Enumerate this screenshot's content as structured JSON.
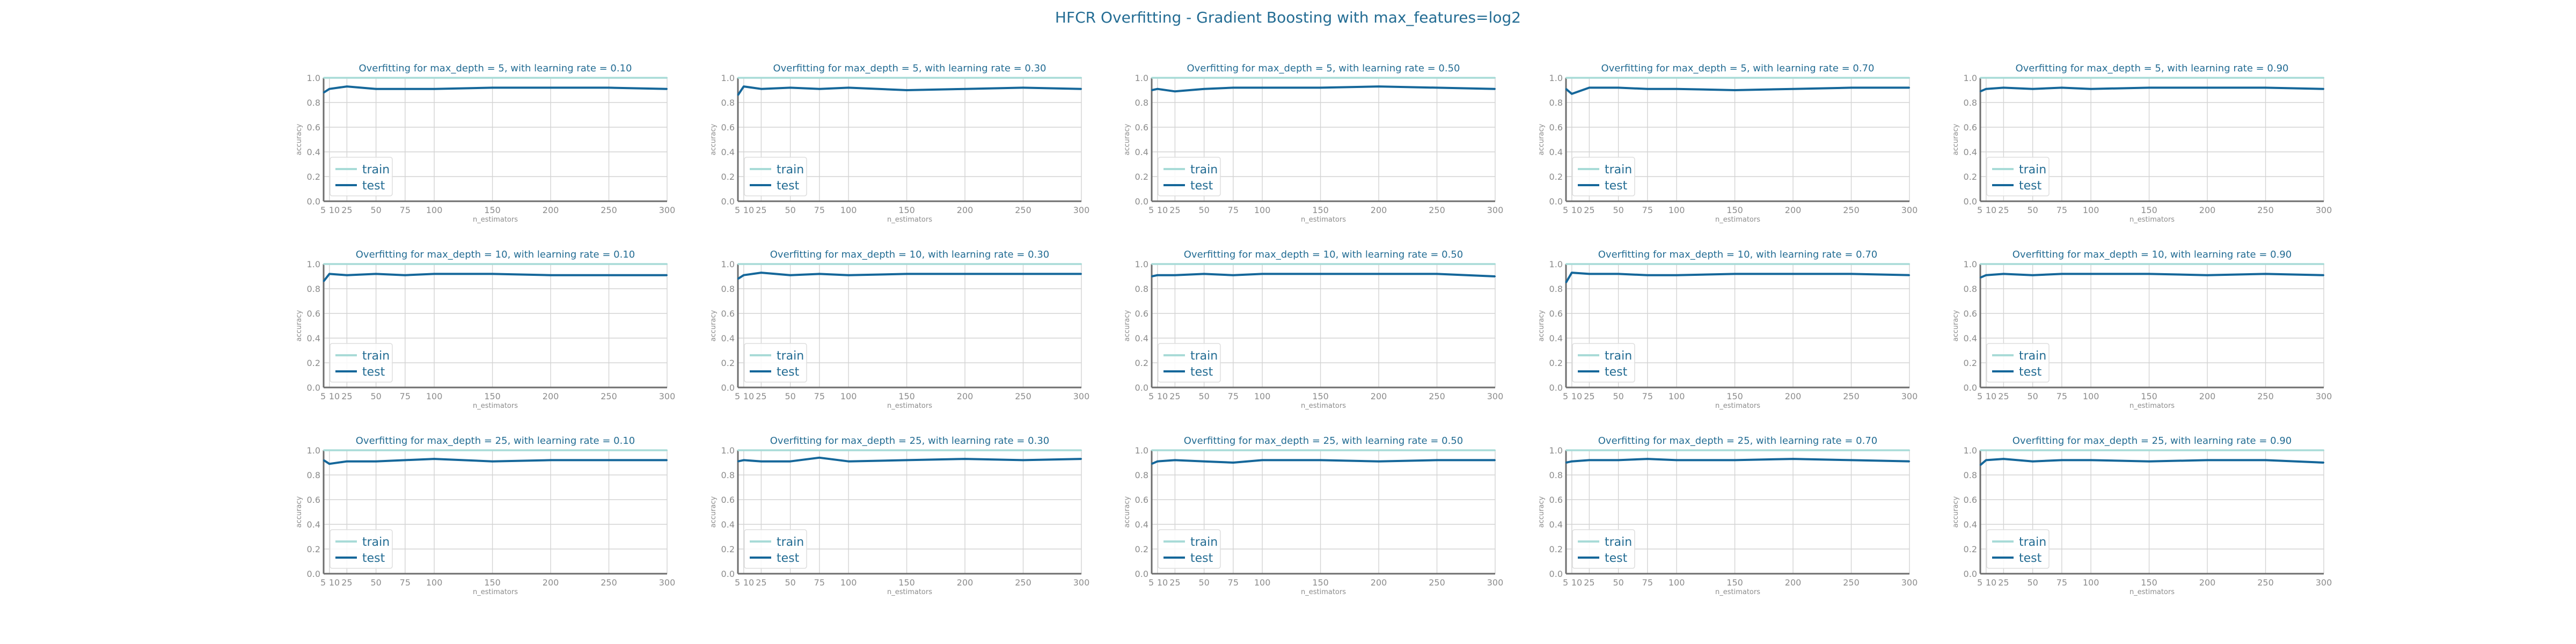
{
  "figure": {
    "title": "HFCR Overfitting - Gradient Boosting with max_features=log2"
  },
  "colors": {
    "train": "#a8dbd7",
    "test": "#15679a",
    "title": "#236c93",
    "grid": "#d3d3d3",
    "tick": "#8c8c8c"
  },
  "chart_data": [
    {
      "type": "line",
      "title": "Overfitting for max_depth = 5, with learning rate = 0.10",
      "xlabel": "n_estimators",
      "ylabel": "accuracy",
      "xlim": [
        5,
        300
      ],
      "ylim": [
        0,
        1
      ],
      "xticks": [
        5,
        10,
        25,
        50,
        75,
        100,
        150,
        200,
        250,
        300
      ],
      "yticks": [
        0.0,
        0.2,
        0.4,
        0.6,
        0.8,
        1.0
      ],
      "legend": "lower-left",
      "grid": true,
      "x": [
        5,
        10,
        25,
        50,
        75,
        100,
        150,
        200,
        250,
        300
      ],
      "series": [
        {
          "name": "train",
          "values": [
            1,
            1,
            1,
            1,
            1,
            1,
            1,
            1,
            1,
            1
          ]
        },
        {
          "name": "test",
          "values": [
            0.88,
            0.91,
            0.93,
            0.91,
            0.91,
            0.91,
            0.92,
            0.92,
            0.92,
            0.91
          ]
        }
      ]
    },
    {
      "type": "line",
      "title": "Overfitting for max_depth = 5, with learning rate = 0.30",
      "xlabel": "n_estimators",
      "ylabel": "accuracy",
      "xlim": [
        5,
        300
      ],
      "ylim": [
        0,
        1
      ],
      "xticks": [
        5,
        10,
        25,
        50,
        75,
        100,
        150,
        200,
        250,
        300
      ],
      "yticks": [
        0.0,
        0.2,
        0.4,
        0.6,
        0.8,
        1.0
      ],
      "legend": "lower-left",
      "grid": true,
      "x": [
        5,
        10,
        25,
        50,
        75,
        100,
        150,
        200,
        250,
        300
      ],
      "series": [
        {
          "name": "train",
          "values": [
            1,
            1,
            1,
            1,
            1,
            1,
            1,
            1,
            1,
            1
          ]
        },
        {
          "name": "test",
          "values": [
            0.86,
            0.93,
            0.91,
            0.92,
            0.91,
            0.92,
            0.9,
            0.91,
            0.92,
            0.91
          ]
        }
      ]
    },
    {
      "type": "line",
      "title": "Overfitting for max_depth = 5, with learning rate = 0.50",
      "xlabel": "n_estimators",
      "ylabel": "accuracy",
      "xlim": [
        5,
        300
      ],
      "ylim": [
        0,
        1
      ],
      "xticks": [
        5,
        10,
        25,
        50,
        75,
        100,
        150,
        200,
        250,
        300
      ],
      "yticks": [
        0.0,
        0.2,
        0.4,
        0.6,
        0.8,
        1.0
      ],
      "legend": "lower-left",
      "grid": true,
      "x": [
        5,
        10,
        25,
        50,
        75,
        100,
        150,
        200,
        250,
        300
      ],
      "series": [
        {
          "name": "train",
          "values": [
            1,
            1,
            1,
            1,
            1,
            1,
            1,
            1,
            1,
            1
          ]
        },
        {
          "name": "test",
          "values": [
            0.9,
            0.91,
            0.89,
            0.91,
            0.92,
            0.92,
            0.92,
            0.93,
            0.92,
            0.91
          ]
        }
      ]
    },
    {
      "type": "line",
      "title": "Overfitting for max_depth = 5, with learning rate = 0.70",
      "xlabel": "n_estimators",
      "ylabel": "accuracy",
      "xlim": [
        5,
        300
      ],
      "ylim": [
        0,
        1
      ],
      "xticks": [
        5,
        10,
        25,
        50,
        75,
        100,
        150,
        200,
        250,
        300
      ],
      "yticks": [
        0.0,
        0.2,
        0.4,
        0.6,
        0.8,
        1.0
      ],
      "legend": "lower-left",
      "grid": true,
      "x": [
        5,
        10,
        25,
        50,
        75,
        100,
        150,
        200,
        250,
        300
      ],
      "series": [
        {
          "name": "train",
          "values": [
            1,
            1,
            1,
            1,
            1,
            1,
            1,
            1,
            1,
            1
          ]
        },
        {
          "name": "test",
          "values": [
            0.91,
            0.87,
            0.92,
            0.92,
            0.91,
            0.91,
            0.9,
            0.91,
            0.92,
            0.92
          ]
        }
      ]
    },
    {
      "type": "line",
      "title": "Overfitting for max_depth = 5, with learning rate = 0.90",
      "xlabel": "n_estimators",
      "ylabel": "accuracy",
      "xlim": [
        5,
        300
      ],
      "ylim": [
        0,
        1
      ],
      "xticks": [
        5,
        10,
        25,
        50,
        75,
        100,
        150,
        200,
        250,
        300
      ],
      "yticks": [
        0.0,
        0.2,
        0.4,
        0.6,
        0.8,
        1.0
      ],
      "legend": "lower-left",
      "grid": true,
      "x": [
        5,
        10,
        25,
        50,
        75,
        100,
        150,
        200,
        250,
        300
      ],
      "series": [
        {
          "name": "train",
          "values": [
            1,
            1,
            1,
            1,
            1,
            1,
            1,
            1,
            1,
            1
          ]
        },
        {
          "name": "test",
          "values": [
            0.89,
            0.91,
            0.92,
            0.91,
            0.92,
            0.91,
            0.92,
            0.92,
            0.92,
            0.91
          ]
        }
      ]
    },
    {
      "type": "line",
      "title": "Overfitting for max_depth = 10, with learning rate = 0.10",
      "xlabel": "n_estimators",
      "ylabel": "accuracy",
      "xlim": [
        5,
        300
      ],
      "ylim": [
        0,
        1
      ],
      "xticks": [
        5,
        10,
        25,
        50,
        75,
        100,
        150,
        200,
        250,
        300
      ],
      "yticks": [
        0.0,
        0.2,
        0.4,
        0.6,
        0.8,
        1.0
      ],
      "legend": "lower-left",
      "grid": true,
      "x": [
        5,
        10,
        25,
        50,
        75,
        100,
        150,
        200,
        250,
        300
      ],
      "series": [
        {
          "name": "train",
          "values": [
            1,
            1,
            1,
            1,
            1,
            1,
            1,
            1,
            1,
            1
          ]
        },
        {
          "name": "test",
          "values": [
            0.86,
            0.92,
            0.91,
            0.92,
            0.91,
            0.92,
            0.92,
            0.91,
            0.91,
            0.91
          ]
        }
      ]
    },
    {
      "type": "line",
      "title": "Overfitting for max_depth = 10, with learning rate = 0.30",
      "xlabel": "n_estimators",
      "ylabel": "accuracy",
      "xlim": [
        5,
        300
      ],
      "ylim": [
        0,
        1
      ],
      "xticks": [
        5,
        10,
        25,
        50,
        75,
        100,
        150,
        200,
        250,
        300
      ],
      "yticks": [
        0.0,
        0.2,
        0.4,
        0.6,
        0.8,
        1.0
      ],
      "legend": "lower-left",
      "grid": true,
      "x": [
        5,
        10,
        25,
        50,
        75,
        100,
        150,
        200,
        250,
        300
      ],
      "series": [
        {
          "name": "train",
          "values": [
            1,
            1,
            1,
            1,
            1,
            1,
            1,
            1,
            1,
            1
          ]
        },
        {
          "name": "test",
          "values": [
            0.88,
            0.91,
            0.93,
            0.91,
            0.92,
            0.91,
            0.92,
            0.92,
            0.92,
            0.92
          ]
        }
      ]
    },
    {
      "type": "line",
      "title": "Overfitting for max_depth = 10, with learning rate = 0.50",
      "xlabel": "n_estimators",
      "ylabel": "accuracy",
      "xlim": [
        5,
        300
      ],
      "ylim": [
        0,
        1
      ],
      "xticks": [
        5,
        10,
        25,
        50,
        75,
        100,
        150,
        200,
        250,
        300
      ],
      "yticks": [
        0.0,
        0.2,
        0.4,
        0.6,
        0.8,
        1.0
      ],
      "legend": "lower-left",
      "grid": true,
      "x": [
        5,
        10,
        25,
        50,
        75,
        100,
        150,
        200,
        250,
        300
      ],
      "series": [
        {
          "name": "train",
          "values": [
            1,
            1,
            1,
            1,
            1,
            1,
            1,
            1,
            1,
            1
          ]
        },
        {
          "name": "test",
          "values": [
            0.9,
            0.91,
            0.91,
            0.92,
            0.91,
            0.92,
            0.92,
            0.92,
            0.92,
            0.9
          ]
        }
      ]
    },
    {
      "type": "line",
      "title": "Overfitting for max_depth = 10, with learning rate = 0.70",
      "xlabel": "n_estimators",
      "ylabel": "accuracy",
      "xlim": [
        5,
        300
      ],
      "ylim": [
        0,
        1
      ],
      "xticks": [
        5,
        10,
        25,
        50,
        75,
        100,
        150,
        200,
        250,
        300
      ],
      "yticks": [
        0.0,
        0.2,
        0.4,
        0.6,
        0.8,
        1.0
      ],
      "legend": "lower-left",
      "grid": true,
      "x": [
        5,
        10,
        25,
        50,
        75,
        100,
        150,
        200,
        250,
        300
      ],
      "series": [
        {
          "name": "train",
          "values": [
            1,
            1,
            1,
            1,
            1,
            1,
            1,
            1,
            1,
            1
          ]
        },
        {
          "name": "test",
          "values": [
            0.85,
            0.93,
            0.92,
            0.92,
            0.91,
            0.91,
            0.92,
            0.92,
            0.92,
            0.91
          ]
        }
      ]
    },
    {
      "type": "line",
      "title": "Overfitting for max_depth = 10, with learning rate = 0.90",
      "xlabel": "n_estimators",
      "ylabel": "accuracy",
      "xlim": [
        5,
        300
      ],
      "ylim": [
        0,
        1
      ],
      "xticks": [
        5,
        10,
        25,
        50,
        75,
        100,
        150,
        200,
        250,
        300
      ],
      "yticks": [
        0.0,
        0.2,
        0.4,
        0.6,
        0.8,
        1.0
      ],
      "legend": "lower-left",
      "grid": true,
      "x": [
        5,
        10,
        25,
        50,
        75,
        100,
        150,
        200,
        250,
        300
      ],
      "series": [
        {
          "name": "train",
          "values": [
            1,
            1,
            1,
            1,
            1,
            1,
            1,
            1,
            1,
            1
          ]
        },
        {
          "name": "test",
          "values": [
            0.89,
            0.91,
            0.92,
            0.91,
            0.92,
            0.92,
            0.92,
            0.91,
            0.92,
            0.91
          ]
        }
      ]
    },
    {
      "type": "line",
      "title": "Overfitting for max_depth = 25, with learning rate = 0.10",
      "xlabel": "n_estimators",
      "ylabel": "accuracy",
      "xlim": [
        5,
        300
      ],
      "ylim": [
        0,
        1
      ],
      "xticks": [
        5,
        10,
        25,
        50,
        75,
        100,
        150,
        200,
        250,
        300
      ],
      "yticks": [
        0.0,
        0.2,
        0.4,
        0.6,
        0.8,
        1.0
      ],
      "legend": "lower-left",
      "grid": true,
      "x": [
        5,
        10,
        25,
        50,
        75,
        100,
        150,
        200,
        250,
        300
      ],
      "series": [
        {
          "name": "train",
          "values": [
            1,
            1,
            1,
            1,
            1,
            1,
            1,
            1,
            1,
            1
          ]
        },
        {
          "name": "test",
          "values": [
            0.92,
            0.89,
            0.91,
            0.91,
            0.92,
            0.93,
            0.91,
            0.92,
            0.92,
            0.92
          ]
        }
      ]
    },
    {
      "type": "line",
      "title": "Overfitting for max_depth = 25, with learning rate = 0.30",
      "xlabel": "n_estimators",
      "ylabel": "accuracy",
      "xlim": [
        5,
        300
      ],
      "ylim": [
        0,
        1
      ],
      "xticks": [
        5,
        10,
        25,
        50,
        75,
        100,
        150,
        200,
        250,
        300
      ],
      "yticks": [
        0.0,
        0.2,
        0.4,
        0.6,
        0.8,
        1.0
      ],
      "legend": "lower-left",
      "grid": true,
      "x": [
        5,
        10,
        25,
        50,
        75,
        100,
        150,
        200,
        250,
        300
      ],
      "series": [
        {
          "name": "train",
          "values": [
            1,
            1,
            1,
            1,
            1,
            1,
            1,
            1,
            1,
            1
          ]
        },
        {
          "name": "test",
          "values": [
            0.91,
            0.92,
            0.91,
            0.91,
            0.94,
            0.91,
            0.92,
            0.93,
            0.92,
            0.93
          ]
        }
      ]
    },
    {
      "type": "line",
      "title": "Overfitting for max_depth = 25, with learning rate = 0.50",
      "xlabel": "n_estimators",
      "ylabel": "accuracy",
      "xlim": [
        5,
        300
      ],
      "ylim": [
        0,
        1
      ],
      "xticks": [
        5,
        10,
        25,
        50,
        75,
        100,
        150,
        200,
        250,
        300
      ],
      "yticks": [
        0.0,
        0.2,
        0.4,
        0.6,
        0.8,
        1.0
      ],
      "legend": "lower-left",
      "grid": true,
      "x": [
        5,
        10,
        25,
        50,
        75,
        100,
        150,
        200,
        250,
        300
      ],
      "series": [
        {
          "name": "train",
          "values": [
            1,
            1,
            1,
            1,
            1,
            1,
            1,
            1,
            1,
            1
          ]
        },
        {
          "name": "test",
          "values": [
            0.89,
            0.91,
            0.92,
            0.91,
            0.9,
            0.92,
            0.92,
            0.91,
            0.92,
            0.92
          ]
        }
      ]
    },
    {
      "type": "line",
      "title": "Overfitting for max_depth = 25, with learning rate = 0.70",
      "xlabel": "n_estimators",
      "ylabel": "accuracy",
      "xlim": [
        5,
        300
      ],
      "ylim": [
        0,
        1
      ],
      "xticks": [
        5,
        10,
        25,
        50,
        75,
        100,
        150,
        200,
        250,
        300
      ],
      "yticks": [
        0.0,
        0.2,
        0.4,
        0.6,
        0.8,
        1.0
      ],
      "legend": "lower-left",
      "grid": true,
      "x": [
        5,
        10,
        25,
        50,
        75,
        100,
        150,
        200,
        250,
        300
      ],
      "series": [
        {
          "name": "train",
          "values": [
            1,
            1,
            1,
            1,
            1,
            1,
            1,
            1,
            1,
            1
          ]
        },
        {
          "name": "test",
          "values": [
            0.9,
            0.91,
            0.92,
            0.92,
            0.93,
            0.92,
            0.92,
            0.93,
            0.92,
            0.91
          ]
        }
      ]
    },
    {
      "type": "line",
      "title": "Overfitting for max_depth = 25, with learning rate = 0.90",
      "xlabel": "n_estimators",
      "ylabel": "accuracy",
      "xlim": [
        5,
        300
      ],
      "ylim": [
        0,
        1
      ],
      "xticks": [
        5,
        10,
        25,
        50,
        75,
        100,
        150,
        200,
        250,
        300
      ],
      "yticks": [
        0.0,
        0.2,
        0.4,
        0.6,
        0.8,
        1.0
      ],
      "legend": "lower-left",
      "grid": true,
      "x": [
        5,
        10,
        25,
        50,
        75,
        100,
        150,
        200,
        250,
        300
      ],
      "series": [
        {
          "name": "train",
          "values": [
            1,
            1,
            1,
            1,
            1,
            1,
            1,
            1,
            1,
            1
          ]
        },
        {
          "name": "test",
          "values": [
            0.88,
            0.92,
            0.93,
            0.91,
            0.92,
            0.92,
            0.91,
            0.92,
            0.92,
            0.9
          ]
        }
      ]
    }
  ]
}
